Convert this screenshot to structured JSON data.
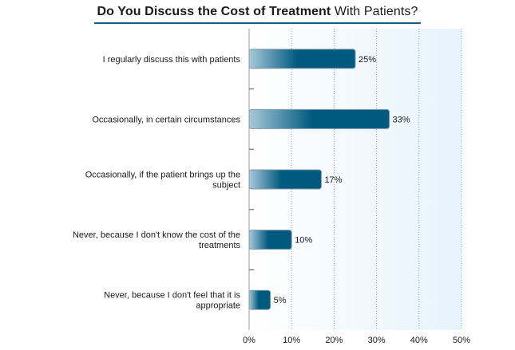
{
  "title": {
    "bold": "Do You Discuss the Cost of Treatment",
    "normal": "With Patients?"
  },
  "colors": {
    "bar_dark": "#005a7f",
    "bar_light": "#a8c9da",
    "plot_bg_left": "#ffffff",
    "plot_bg_right": "#e6f3fb",
    "title_underline": "#1a5d80"
  },
  "chart_data": {
    "type": "bar",
    "orientation": "horizontal",
    "categories": [
      [
        "I regularly discuss this with patients"
      ],
      [
        "Occasionally, in certain circumstances"
      ],
      [
        "Occasionally, if the patient brings up the",
        "subject"
      ],
      [
        "Never, because I don't know the cost of the",
        "treatments"
      ],
      [
        "Never, because I don't feel that it is",
        "appropriate"
      ]
    ],
    "values": [
      25,
      33,
      17,
      10,
      5
    ],
    "data_labels": [
      "25%",
      "33%",
      "17%",
      "10%",
      "5%"
    ],
    "xlim": [
      0,
      50
    ],
    "xticks": [
      "0%",
      "10%",
      "20%",
      "30%",
      "40%",
      "50%"
    ],
    "grid": true,
    "legend": "none"
  }
}
